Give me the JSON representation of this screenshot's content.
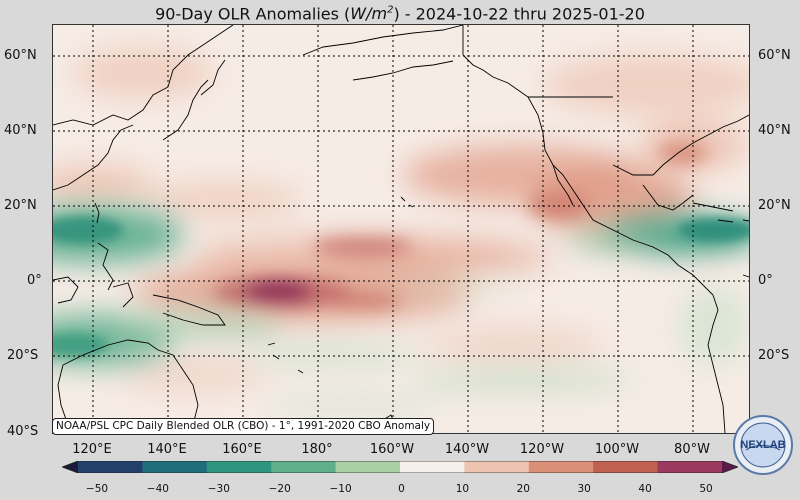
{
  "title": {
    "prefix": "90-Day OLR Anomalies (",
    "unit_base": "W/m",
    "unit_exp": "2",
    "suffix": ") - 2024-10-22 thru 2025-01-20"
  },
  "lat_labels": [
    "60°N",
    "40°N",
    "20°N",
    "0°",
    "20°S",
    "40°S"
  ],
  "lon_labels": [
    "120°E",
    "140°E",
    "160°E",
    "180°",
    "160°W",
    "140°W",
    "120°W",
    "100°W",
    "80°W"
  ],
  "source_note": "NOAA/PSL CPC Daily Blended OLR (CBO) - 1°, 1991-2020 CBO Anomaly",
  "colorbar": {
    "ticks": [
      "−50",
      "−40",
      "−30",
      "−20",
      "−10",
      "0",
      "10",
      "20",
      "30",
      "40",
      "50"
    ],
    "colors": [
      "#1b1a3a",
      "#23406a",
      "#1f6e7a",
      "#2e957f",
      "#5fb08a",
      "#a9cfa6",
      "#f7f0ea",
      "#ecc4b0",
      "#d99077",
      "#c0604f",
      "#9a3a5c",
      "#5a1a4a"
    ]
  },
  "logo": {
    "text": "NEXLAB",
    "icon": "nexlab-globe-logo"
  },
  "map": {
    "region": "Pacific Ocean, 40°S–68°N, 105°E–70°W",
    "colors": {
      "ocean_neutral": "#f6ece6",
      "positive_anomaly": "#d98a74",
      "strong_positive": "#8e2c5a",
      "negative_anomaly": "#3fa082",
      "coastline": "#000000",
      "grid": "#000000"
    }
  }
}
